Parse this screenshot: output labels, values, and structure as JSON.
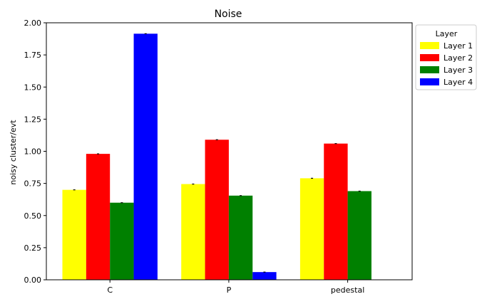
{
  "chart_data": {
    "type": "bar",
    "title": "Noise",
    "xlabel": "",
    "ylabel": "noisy cluster/evt",
    "categories": [
      "C",
      "P",
      "pedestal"
    ],
    "ylim": [
      0,
      2.0
    ],
    "yticks": [
      "0.00",
      "0.25",
      "0.50",
      "0.75",
      "1.00",
      "1.25",
      "1.50",
      "1.75",
      "2.00"
    ],
    "legend_title": "Layer",
    "legend_position": "outside-top-right",
    "grid": false,
    "series": [
      {
        "name": "Layer 1",
        "color": "#ffff00",
        "values": [
          0.7,
          0.745,
          0.79
        ]
      },
      {
        "name": "Layer 2",
        "color": "#ff0000",
        "values": [
          0.98,
          1.09,
          1.06
        ]
      },
      {
        "name": "Layer 3",
        "color": "#008000",
        "values": [
          0.6,
          0.655,
          0.69
        ]
      },
      {
        "name": "Layer 4",
        "color": "#0000ff",
        "values": [
          1.915,
          0.06,
          null
        ]
      }
    ],
    "error_bars": true
  }
}
